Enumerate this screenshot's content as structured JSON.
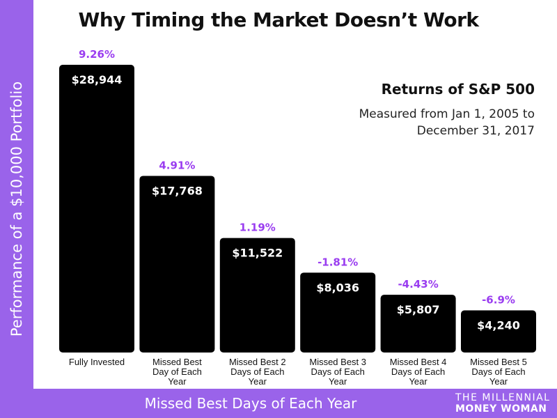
{
  "chart_data": {
    "type": "bar",
    "title": "Why Timing the Market Doesn’t Work",
    "subtitle": "Returns of S&P 500",
    "note": "Measured from Jan 1, 2005 to December 31, 2017",
    "xlabel": "Missed Best Days of Each Year",
    "ylabel": "Performance of a $10,000 Portfolio",
    "categories": [
      "Fully Invested",
      "Missed Best Day of Each Year",
      "Missed Best 2 Days of Each Year",
      "Missed Best 3 Days of Each Year",
      "Missed Best 4 Days of Each Year",
      "Missed Best 5 Days of Each Year"
    ],
    "category_lines": [
      [
        "Fully Invested"
      ],
      [
        "Missed Best",
        "Day of Each",
        "Year"
      ],
      [
        "Missed Best 2",
        "Days of Each",
        "Year"
      ],
      [
        "Missed Best 3",
        "Days of Each",
        "Year"
      ],
      [
        "Missed Best 4",
        "Days of Each",
        "Year"
      ],
      [
        "Missed Best 5",
        "Days of Each",
        "Year"
      ]
    ],
    "values": [
      28944,
      17768,
      11522,
      8036,
      5807,
      4240
    ],
    "value_labels": [
      "$28,944",
      "$17,768",
      "$11,522",
      "$8,036",
      "$5,807",
      "$4,240"
    ],
    "return_labels": [
      "9.26%",
      "4.91%",
      "1.19%",
      "-1.81%",
      "-4.43%",
      "-6.9%"
    ],
    "ylim": [
      0,
      28944
    ],
    "grid": false,
    "colors": {
      "bar": "#000000",
      "accent": "#9a63ea",
      "value_text": "#ffffff",
      "return_text": "#9a3df0"
    }
  },
  "brand": {
    "line1": "THE MILLENNIAL",
    "line2": "MONEY WOMAN"
  }
}
